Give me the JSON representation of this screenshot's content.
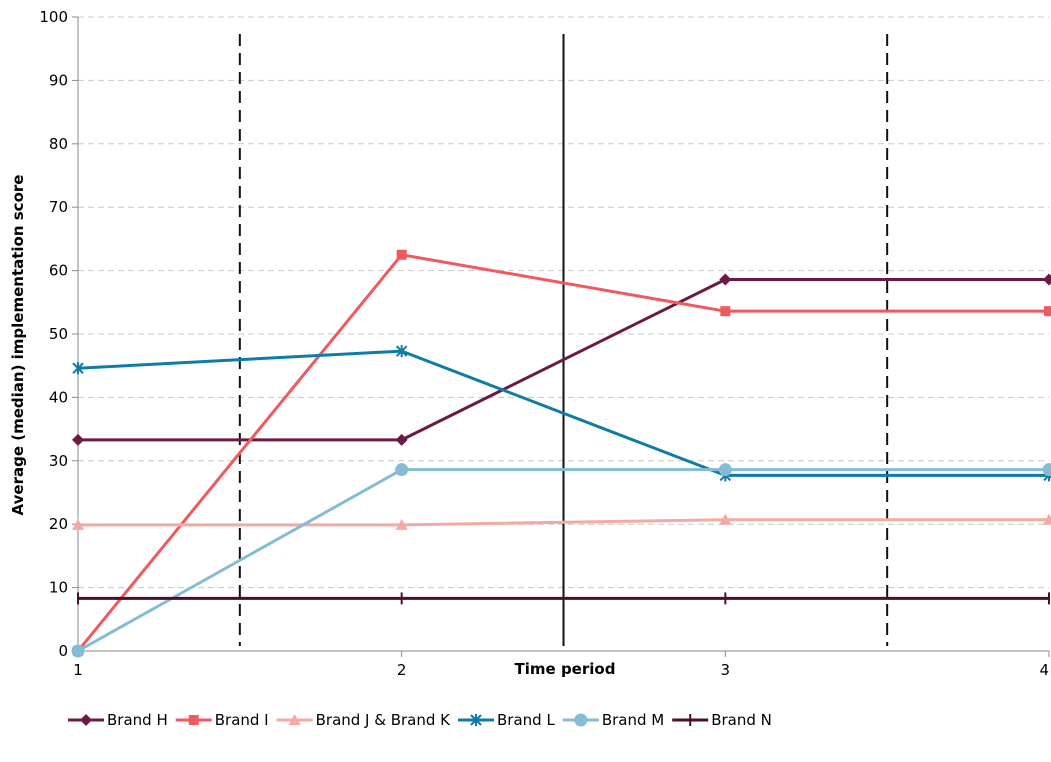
{
  "chart_data": {
    "type": "line",
    "title": "",
    "xlabel": "Time period",
    "ylabel": "Average (median) implementation score",
    "xlim": [
      1,
      4
    ],
    "ylim": [
      0,
      100
    ],
    "x_ticks": [
      "1",
      "2",
      "3",
      "4"
    ],
    "y_ticks": [
      "0",
      "10",
      "20",
      "30",
      "40",
      "50",
      "60",
      "70",
      "80",
      "90",
      "100"
    ],
    "grid": "horizontal-dashed",
    "legend_position": "bottom",
    "x": [
      1,
      2,
      3,
      4
    ],
    "vertical_lines": [
      {
        "x": 1.5,
        "style": "dashed"
      },
      {
        "x": 2.5,
        "style": "solid"
      },
      {
        "x": 3.5,
        "style": "dashed"
      }
    ],
    "series": [
      {
        "name": "Brand H",
        "color": "#6b1a45",
        "marker": "diamond",
        "values": [
          33.3,
          33.3,
          58.6,
          58.6
        ]
      },
      {
        "name": "Brand I",
        "color": "#f05a5f",
        "marker": "square",
        "values": [
          0,
          62.5,
          53.6,
          53.6
        ]
      },
      {
        "name": "Brand J & Brand K",
        "color": "#f4a9a3",
        "marker": "triangle",
        "values": [
          19.9,
          19.9,
          20.7,
          20.7
        ]
      },
      {
        "name": "Brand L",
        "color": "#0f7ca6",
        "marker": "asterisk",
        "values": [
          44.6,
          47.3,
          27.7,
          27.7
        ]
      },
      {
        "name": "Brand M",
        "color": "#85bcd5",
        "marker": "circle",
        "values": [
          0,
          28.6,
          28.6,
          28.6
        ]
      },
      {
        "name": "Brand N",
        "color": "#4a0f2d",
        "marker": "plus",
        "values": [
          8.3,
          8.3,
          8.3,
          8.3
        ]
      }
    ]
  }
}
